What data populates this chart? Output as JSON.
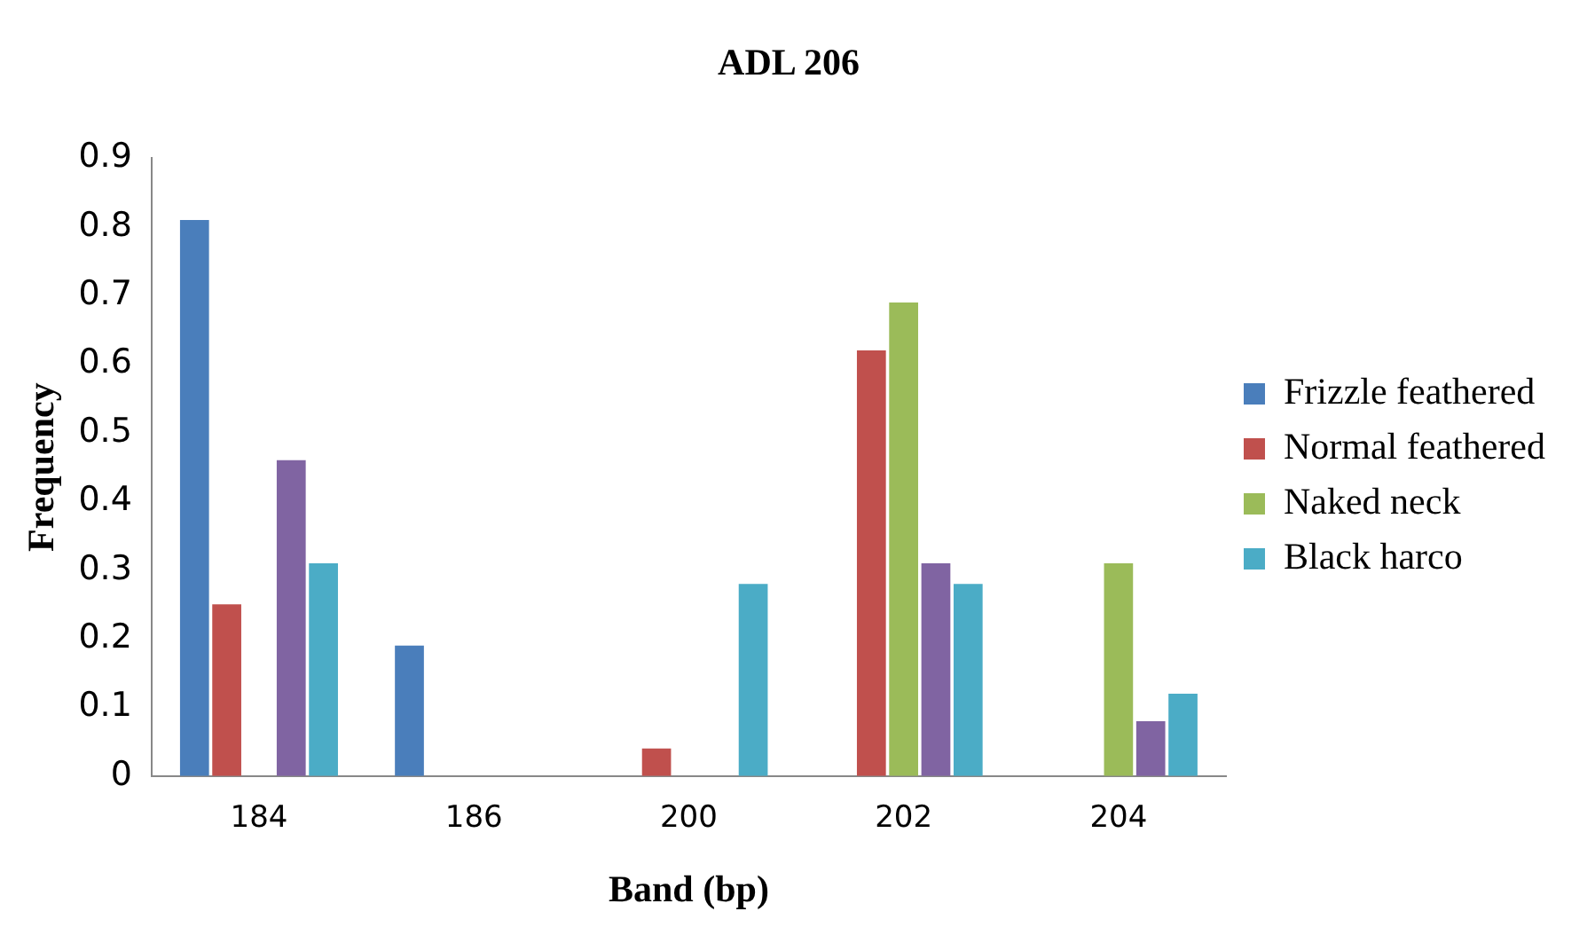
{
  "chart_data": {
    "type": "bar",
    "title": "ADL 206",
    "xlabel": "Band (bp)",
    "ylabel": "Frequency",
    "categories": [
      "184",
      "186",
      "200",
      "202",
      "204"
    ],
    "series": [
      {
        "name": "Frizzle feathered",
        "color": "#4a7ebb",
        "values": [
          0.81,
          0.19,
          0,
          0,
          0
        ]
      },
      {
        "name": "Normal feathered",
        "color": "#c0504d",
        "values": [
          0.25,
          0,
          0.04,
          0.62,
          0
        ]
      },
      {
        "name": "Naked neck",
        "color": "#9bbb59",
        "values": [
          0,
          0,
          0,
          0.69,
          0.31
        ]
      },
      {
        "color": "#8064a2",
        "values": [
          0.46,
          0,
          0,
          0.31,
          0.08
        ]
      },
      {
        "name": "Black harco",
        "color": "#4bacc6",
        "values": [
          0.31,
          0,
          0.28,
          0.28,
          0.12
        ]
      }
    ],
    "ylim": [
      0,
      0.9
    ],
    "yticks": [
      0,
      0.1,
      0.2,
      0.3,
      0.4,
      0.5,
      0.6,
      0.7,
      0.8,
      0.9
    ],
    "grid": false,
    "legend": "right"
  }
}
